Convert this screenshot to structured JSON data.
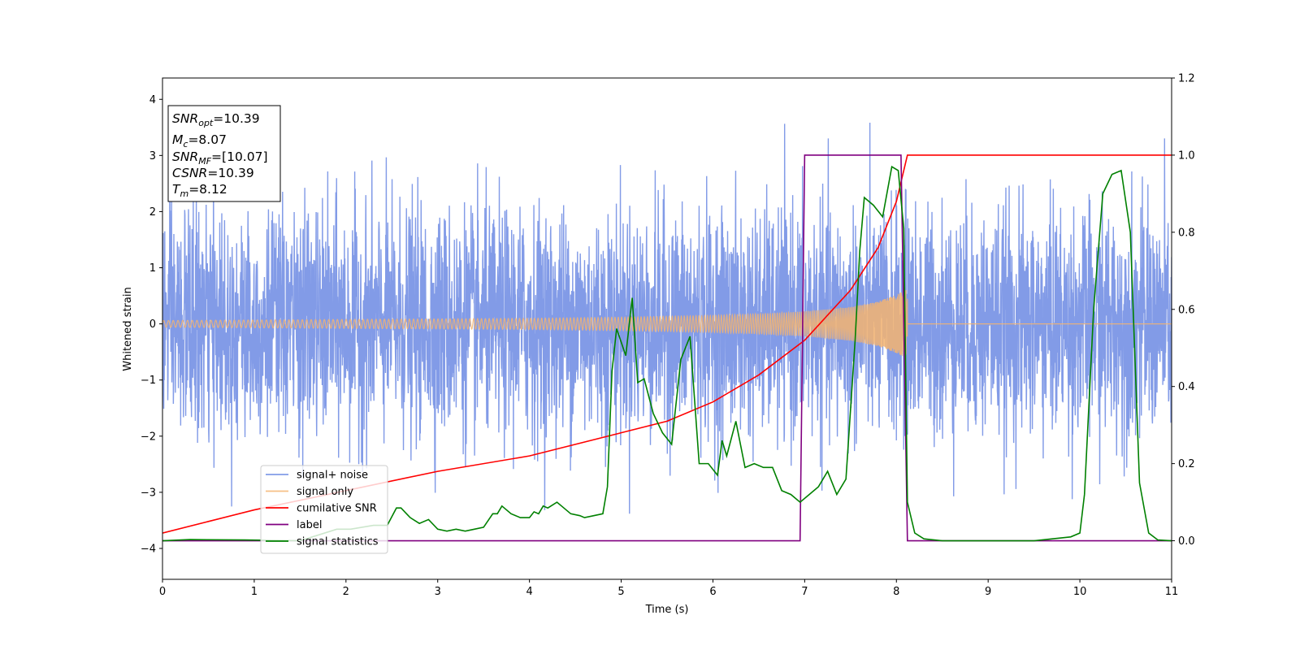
{
  "chart_data": {
    "type": "line",
    "xlabel": "Time (s)",
    "ylabel": "Whitened strain",
    "xlim": [
      0,
      11
    ],
    "ylim_left": [
      -4.55,
      4.38
    ],
    "ylim_right": [
      -0.1,
      1.2
    ],
    "x_ticks": [
      "0",
      "1",
      "2",
      "3",
      "4",
      "5",
      "6",
      "7",
      "8",
      "9",
      "10",
      "11"
    ],
    "y_ticks_left": [
      "−4",
      "−3",
      "−2",
      "−1",
      "0",
      "1",
      "2",
      "3",
      "4"
    ],
    "y_ticks_right": [
      "0.0",
      "0.2",
      "0.4",
      "0.6",
      "0.8",
      "1.0",
      "1.2"
    ],
    "legend_position": "lower-left",
    "colors": {
      "signal_noise": "#7b96e6",
      "signal_only": "#f5b470",
      "cumulative_snr": "#ff0000",
      "label": "#800080",
      "signal_statistics": "#008000"
    },
    "annotation": [
      {
        "var": "SNR",
        "sub": "opt",
        "rest": "=10.39"
      },
      {
        "var": "M",
        "sub": "c",
        "rest": "=8.07"
      },
      {
        "var": "SNR",
        "sub": "MF",
        "rest": "=[10.07]"
      },
      {
        "var": "CSNR",
        "sub": "",
        "rest": "=10.39"
      },
      {
        "var": "T",
        "sub": "m",
        "rest": "=8.12"
      }
    ],
    "series": [
      {
        "name": "signal+ noise",
        "axis": "left",
        "style": "random noise, std ≈ 1.0, range approx [-4.2, 3.7]",
        "x_range": [
          0,
          11
        ],
        "std": 1.0
      },
      {
        "name": "signal only",
        "axis": "left",
        "style": "chirp oscillation, amplitude envelope (data units)",
        "envelope": {
          "x": [
            0,
            1,
            2,
            3,
            4,
            5,
            6,
            6.5,
            7,
            7.5,
            7.8,
            8.0,
            8.1,
            8.12
          ],
          "amp": [
            0.06,
            0.07,
            0.08,
            0.09,
            0.1,
            0.12,
            0.15,
            0.18,
            0.22,
            0.3,
            0.4,
            0.52,
            0.6,
            0.62
          ]
        },
        "ends_at": 8.12
      },
      {
        "name": "cumilative SNR",
        "axis": "right",
        "x": [
          0,
          0.5,
          1,
          2,
          3,
          4,
          5,
          5.5,
          6,
          6.5,
          7,
          7.5,
          7.8,
          8.0,
          8.1,
          8.12,
          11
        ],
        "y": [
          0.02,
          0.05,
          0.08,
          0.13,
          0.18,
          0.22,
          0.28,
          0.31,
          0.36,
          0.43,
          0.52,
          0.65,
          0.76,
          0.88,
          0.98,
          1.0,
          1.0
        ]
      },
      {
        "name": "label",
        "axis": "right",
        "x": [
          0,
          6.95,
          7.0,
          8.05,
          8.12,
          11
        ],
        "y": [
          0,
          0,
          1,
          1,
          0,
          0
        ]
      },
      {
        "name": "signal statistics",
        "axis": "right",
        "x": [
          0,
          0.3,
          0.9,
          1.5,
          1.9,
          2.05,
          2.3,
          2.45,
          2.55,
          2.6,
          2.7,
          2.8,
          2.9,
          3.0,
          3.1,
          3.2,
          3.3,
          3.4,
          3.5,
          3.6,
          3.65,
          3.7,
          3.8,
          3.9,
          4.0,
          4.05,
          4.1,
          4.15,
          4.2,
          4.3,
          4.35,
          4.45,
          4.55,
          4.6,
          4.7,
          4.8,
          4.85,
          4.9,
          4.95,
          5.05,
          5.12,
          5.18,
          5.25,
          5.35,
          5.45,
          5.55,
          5.65,
          5.75,
          5.85,
          5.95,
          6.05,
          6.1,
          6.15,
          6.25,
          6.35,
          6.45,
          6.55,
          6.65,
          6.75,
          6.85,
          6.95,
          7.05,
          7.15,
          7.25,
          7.35,
          7.45,
          7.55,
          7.6,
          7.65,
          7.75,
          7.85,
          7.95,
          8.02,
          8.08,
          8.12,
          8.2,
          8.3,
          8.5,
          9.5,
          9.9,
          10.0,
          10.05,
          10.15,
          10.25,
          10.35,
          10.45,
          10.55,
          10.65,
          10.75,
          10.85,
          11
        ],
        "y": [
          0.0,
          0.003,
          0.002,
          0.0,
          0.03,
          0.03,
          0.04,
          0.04,
          0.085,
          0.085,
          0.06,
          0.045,
          0.055,
          0.03,
          0.025,
          0.03,
          0.025,
          0.03,
          0.035,
          0.07,
          0.07,
          0.09,
          0.07,
          0.06,
          0.06,
          0.075,
          0.07,
          0.09,
          0.085,
          0.1,
          0.09,
          0.07,
          0.065,
          0.06,
          0.065,
          0.07,
          0.14,
          0.44,
          0.55,
          0.48,
          0.63,
          0.41,
          0.42,
          0.33,
          0.28,
          0.25,
          0.47,
          0.53,
          0.2,
          0.2,
          0.17,
          0.26,
          0.22,
          0.31,
          0.19,
          0.2,
          0.19,
          0.19,
          0.13,
          0.12,
          0.1,
          0.12,
          0.14,
          0.18,
          0.12,
          0.16,
          0.52,
          0.75,
          0.89,
          0.87,
          0.84,
          0.97,
          0.96,
          0.81,
          0.1,
          0.02,
          0.005,
          0.0,
          0.0,
          0.01,
          0.02,
          0.12,
          0.6,
          0.9,
          0.95,
          0.96,
          0.8,
          0.15,
          0.02,
          0.002,
          0.0
        ]
      }
    ]
  }
}
